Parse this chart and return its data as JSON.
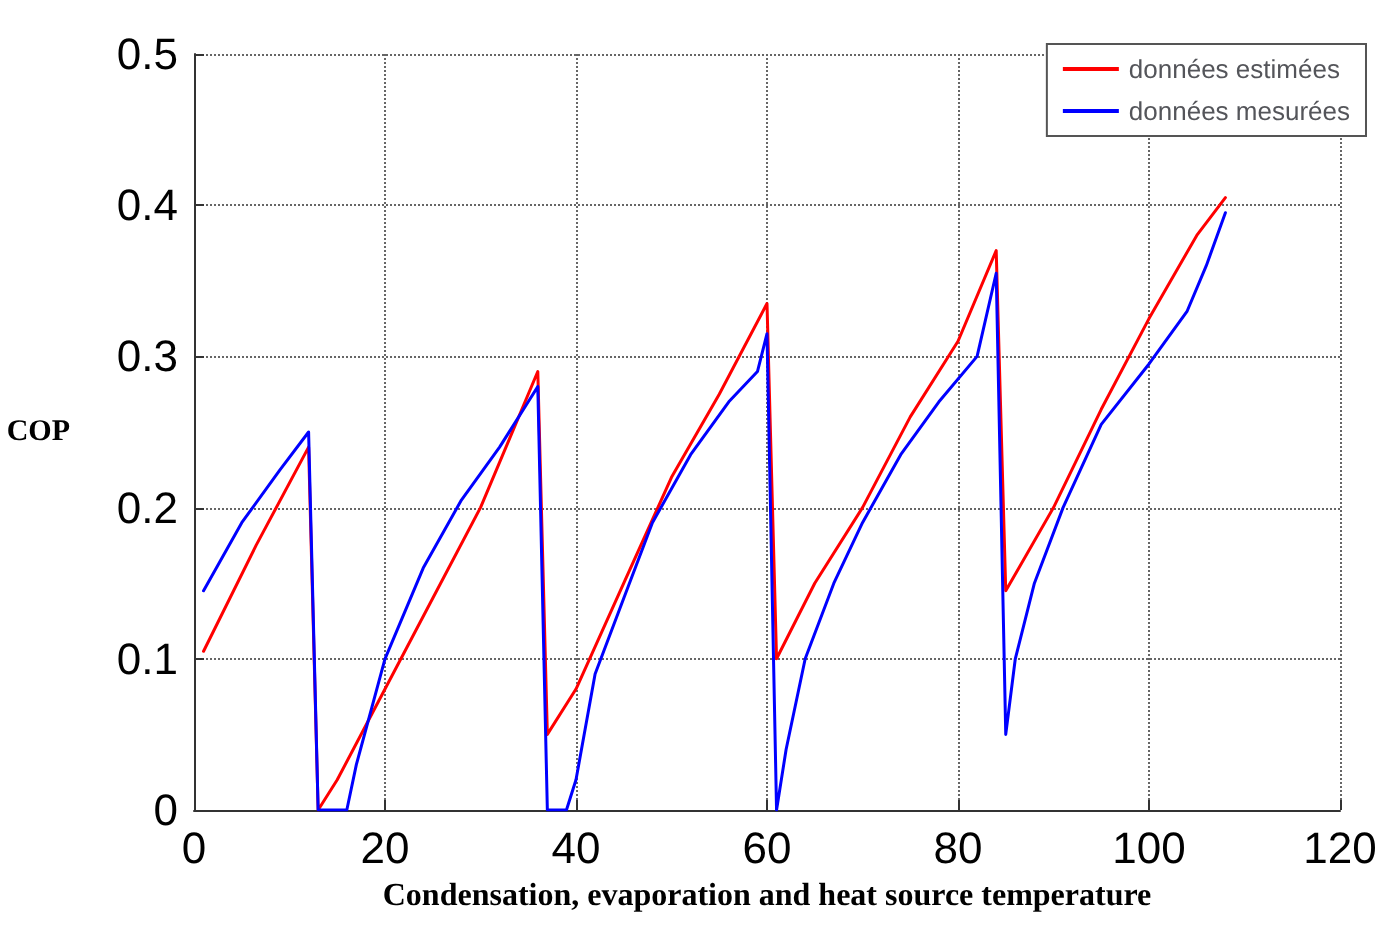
{
  "chart_data": {
    "type": "line",
    "xlabel": "Condensation, evaporation and heat source temperature",
    "ylabel": "COP",
    "xlim": [
      0,
      120
    ],
    "xticks": [
      0,
      20,
      40,
      60,
      80,
      100,
      120
    ],
    "ylim": [
      0,
      0.5
    ],
    "yticks": [
      0,
      0.1,
      0.2,
      0.3,
      0.4,
      0.5
    ],
    "grid": true,
    "legend": "top right",
    "marker": "none",
    "line_style": "solid",
    "series": [
      {
        "name": "données estimées",
        "color": "#ff0000",
        "x": [
          1,
          6.5,
          12,
          13,
          15,
          20,
          25,
          30,
          33,
          36,
          37,
          40,
          45,
          50,
          55,
          60,
          61,
          63,
          65,
          70,
          75,
          80,
          84,
          85,
          90,
          95,
          100,
          105,
          108
        ],
        "values": [
          0.105,
          0.175,
          0.24,
          0,
          0.02,
          0.08,
          0.14,
          0.2,
          0.245,
          0.29,
          0.05,
          0.08,
          0.15,
          0.22,
          0.275,
          0.335,
          0.1,
          0.125,
          0.15,
          0.2,
          0.26,
          0.31,
          0.37,
          0.145,
          0.2,
          0.265,
          0.325,
          0.38,
          0.405
        ]
      },
      {
        "name": "données mesurées",
        "color": "#0000ff",
        "x": [
          1,
          5,
          9,
          12,
          13,
          16,
          17,
          20,
          24,
          28,
          32,
          35,
          36,
          37,
          39,
          40,
          42,
          45,
          48,
          52,
          56,
          59,
          60,
          61,
          62,
          64,
          67,
          70,
          74,
          78,
          82,
          84,
          85,
          86,
          88,
          91,
          95,
          100,
          104,
          106,
          108
        ],
        "values": [
          0.145,
          0.19,
          0.225,
          0.25,
          0,
          0,
          0.03,
          0.1,
          0.16,
          0.205,
          0.24,
          0.27,
          0.28,
          0,
          0,
          0.02,
          0.09,
          0.14,
          0.19,
          0.235,
          0.27,
          0.29,
          0.315,
          0,
          0.04,
          0.1,
          0.15,
          0.19,
          0.235,
          0.27,
          0.3,
          0.355,
          0.05,
          0.1,
          0.15,
          0.2,
          0.255,
          0.295,
          0.33,
          0.36,
          0.395
        ]
      }
    ]
  }
}
